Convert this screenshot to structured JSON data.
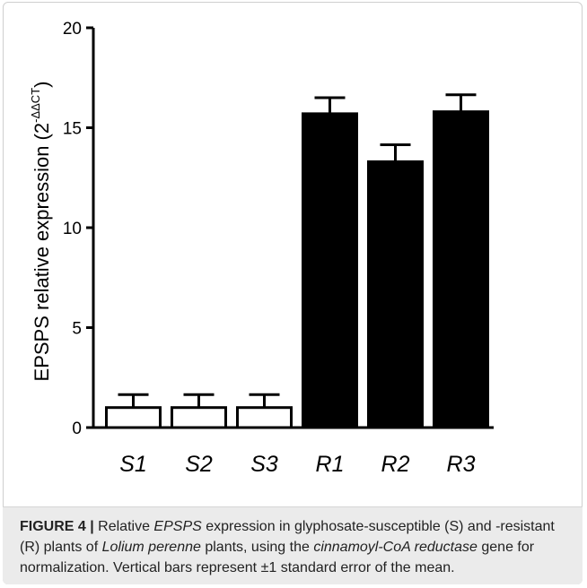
{
  "chart_data": {
    "type": "bar",
    "categories": [
      "S1",
      "S2",
      "S3",
      "R1",
      "R2",
      "R3"
    ],
    "series": [
      {
        "values": [
          1,
          1,
          1,
          15.7,
          13.3,
          15.8
        ],
        "errors": [
          0.65,
          0.65,
          0.65,
          0.8,
          0.85,
          0.85
        ],
        "fills": [
          "#ffffff",
          "#ffffff",
          "#ffffff",
          "#000000",
          "#000000",
          "#000000"
        ]
      }
    ],
    "ylabel": "EPSPS relative expression (2",
    "ylabel_superscript": "-ΔΔCT",
    "ylabel_close": ")",
    "ylim": [
      0,
      20
    ],
    "yticks": [
      0,
      5,
      10,
      15,
      20
    ],
    "grid": false
  },
  "caption": {
    "label": "FIGURE 4 |",
    "t1": " Relative ",
    "t2": "EPSPS",
    "t3": " expression in glyphosate-susceptible (S) and -resistant (R) plants of ",
    "t4": "Lolium perenne",
    "t5": " plants, using the ",
    "t6": "cinnamoyl-CoA reductase",
    "t7": " gene for normalization. Vertical bars represent ±1 standard error of the mean."
  }
}
